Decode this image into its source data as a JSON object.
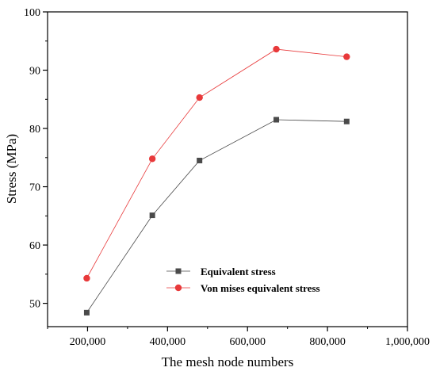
{
  "chart_data": {
    "type": "line",
    "title": "",
    "xlabel": "The mesh node numbers",
    "ylabel": "Stress (MPa)",
    "x": [
      198000,
      362000,
      480000,
      672000,
      848000
    ],
    "xlim": [
      100000,
      1000000
    ],
    "ylim": [
      46,
      100
    ],
    "x_ticks": [
      200000,
      400000,
      600000,
      800000,
      1000000
    ],
    "x_tick_labels": [
      "200,000",
      "400,000",
      "600,000",
      "800,000",
      "1,000,000"
    ],
    "y_ticks": [
      50,
      60,
      70,
      80,
      90,
      100
    ],
    "y_tick_labels": [
      "50",
      "60",
      "70",
      "80",
      "90",
      "100"
    ],
    "grid": false,
    "legend_position": "lower-right-center",
    "series": [
      {
        "name": "Equivalent stress",
        "values": [
          48.4,
          65.1,
          74.5,
          81.5,
          81.2
        ],
        "color": "#4a4a4a",
        "marker": "square"
      },
      {
        "name": "Von mises equivalent stress",
        "values": [
          54.3,
          74.8,
          85.3,
          93.6,
          92.3
        ],
        "color": "#e8393a",
        "marker": "circle"
      }
    ]
  }
}
